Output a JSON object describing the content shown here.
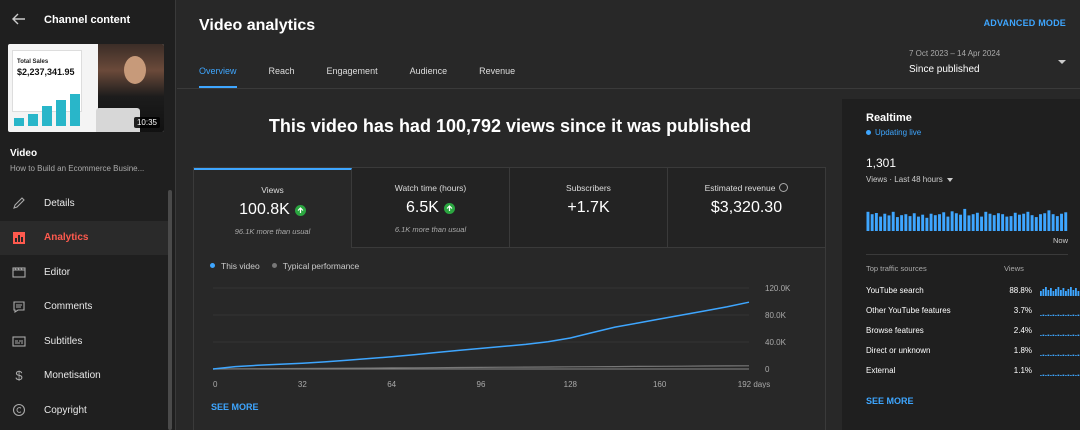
{
  "sidebar": {
    "title": "Channel content",
    "thumbnail": {
      "card_label": "Total Sales",
      "card_value": "$2,237,341.95",
      "duration": "10:35"
    },
    "video_heading": "Video",
    "video_name": "How to Build an Ecommerce Busine...",
    "items": [
      {
        "label": "Details",
        "icon": "pencil-icon",
        "active": false
      },
      {
        "label": "Analytics",
        "icon": "analytics-icon",
        "active": true
      },
      {
        "label": "Editor",
        "icon": "clapperboard-icon",
        "active": false
      },
      {
        "label": "Comments",
        "icon": "comment-icon",
        "active": false
      },
      {
        "label": "Subtitles",
        "icon": "subtitles-icon",
        "active": false
      },
      {
        "label": "Monetisation",
        "icon": "dollar-icon",
        "active": false
      },
      {
        "label": "Copyright",
        "icon": "copyright-icon",
        "active": false
      }
    ]
  },
  "header": {
    "title": "Video analytics",
    "advanced_mode": "ADVANCED MODE",
    "tabs": [
      "Overview",
      "Reach",
      "Engagement",
      "Audience",
      "Revenue"
    ],
    "active_tab": "Overview",
    "date_range": "7 Oct 2023 – 14 Apr 2024",
    "period": "Since published"
  },
  "headline": "This video has had 100,792 views since it was published",
  "metrics": [
    {
      "label": "Views",
      "value": "100.8K",
      "sub": "96.1K more than usual",
      "trend": "up"
    },
    {
      "label": "Watch time (hours)",
      "value": "6.5K",
      "sub": "6.1K more than usual",
      "trend": "up"
    },
    {
      "label": "Subscribers",
      "value": "+1.7K",
      "sub": ""
    },
    {
      "label": "Estimated revenue",
      "value": "$3,320.30",
      "sub": ""
    }
  ],
  "legend": {
    "this_video": "This video",
    "typical": "Typical performance"
  },
  "see_more": "SEE MORE",
  "colors": {
    "accent": "#3ea6ff",
    "active_nav": "#ff5a4e",
    "trend_up": "#2ba640"
  },
  "chart_data": {
    "type": "line",
    "x": [
      0,
      8,
      16,
      24,
      32,
      40,
      48,
      56,
      64,
      72,
      80,
      88,
      96,
      104,
      112,
      120,
      128,
      136,
      144,
      152,
      160,
      168,
      176,
      184,
      192
    ],
    "series": [
      {
        "name": "This video",
        "values": [
          0,
          3500,
          5500,
          7000,
          8500,
          10500,
          13000,
          15500,
          18000,
          21000,
          24500,
          27500,
          30500,
          33500,
          36500,
          40500,
          46000,
          54000,
          62000,
          68000,
          74000,
          80000,
          86000,
          92000,
          99000
        ]
      },
      {
        "name": "Typical performance",
        "values": [
          0,
          200,
          400,
          600,
          800,
          1000,
          1200,
          1400,
          1600,
          1800,
          2000,
          2200,
          2400,
          2600,
          2800,
          3000,
          3200,
          3400,
          3600,
          3800,
          4000,
          4200,
          4400,
          4600,
          4700
        ]
      }
    ],
    "x_ticks": [
      "0",
      "32",
      "64",
      "96",
      "128",
      "160",
      "192 days"
    ],
    "y_ticks": [
      "120.0K",
      "80.0K",
      "40.0K",
      "0"
    ],
    "ylim": [
      0,
      120000
    ],
    "xlim": [
      0,
      192
    ]
  },
  "realtime": {
    "title": "Realtime",
    "status": "Updating live",
    "count": "1,301",
    "period_label": "Views · Last 48 hours",
    "now_label": "Now",
    "bars": [
      0.8,
      0.7,
      0.75,
      0.6,
      0.72,
      0.65,
      0.8,
      0.58,
      0.66,
      0.7,
      0.62,
      0.74,
      0.6,
      0.68,
      0.55,
      0.72,
      0.66,
      0.7,
      0.78,
      0.6,
      0.82,
      0.74,
      0.68,
      0.92,
      0.65,
      0.7,
      0.76,
      0.6,
      0.8,
      0.72,
      0.66,
      0.74,
      0.7,
      0.6,
      0.62,
      0.76,
      0.68,
      0.72,
      0.8,
      0.66,
      0.58,
      0.7,
      0.74,
      0.86,
      0.7,
      0.62,
      0.72,
      0.78
    ],
    "sources_header": "Top traffic sources",
    "views_header": "Views",
    "sources": [
      {
        "name": "YouTube search",
        "pct": "88.8%"
      },
      {
        "name": "Other YouTube features",
        "pct": "3.7%"
      },
      {
        "name": "Browse features",
        "pct": "2.4%"
      },
      {
        "name": "Direct or unknown",
        "pct": "1.8%"
      },
      {
        "name": "External",
        "pct": "1.1%"
      }
    ],
    "see_more": "SEE MORE"
  }
}
